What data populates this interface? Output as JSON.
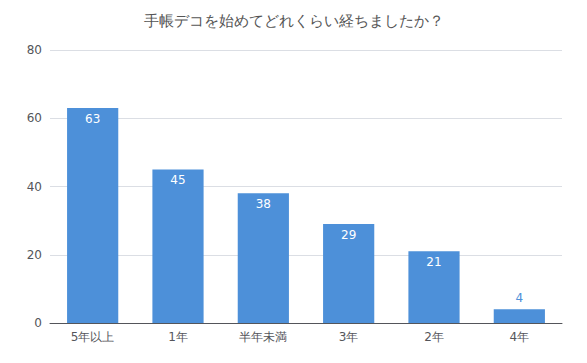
{
  "chart_data": {
    "type": "bar",
    "title": "手帳デコを始めてどれくらい経ちましたか？",
    "categories": [
      "5年以上",
      "1年",
      "半年未満",
      "3年",
      "2年",
      "4年"
    ],
    "values": [
      63,
      45,
      38,
      29,
      21,
      4
    ],
    "color": "#4d90d9",
    "ylim": [
      0,
      80
    ],
    "yticks": [
      0,
      20,
      40,
      60,
      80
    ],
    "grid": true,
    "data_labels": true
  }
}
